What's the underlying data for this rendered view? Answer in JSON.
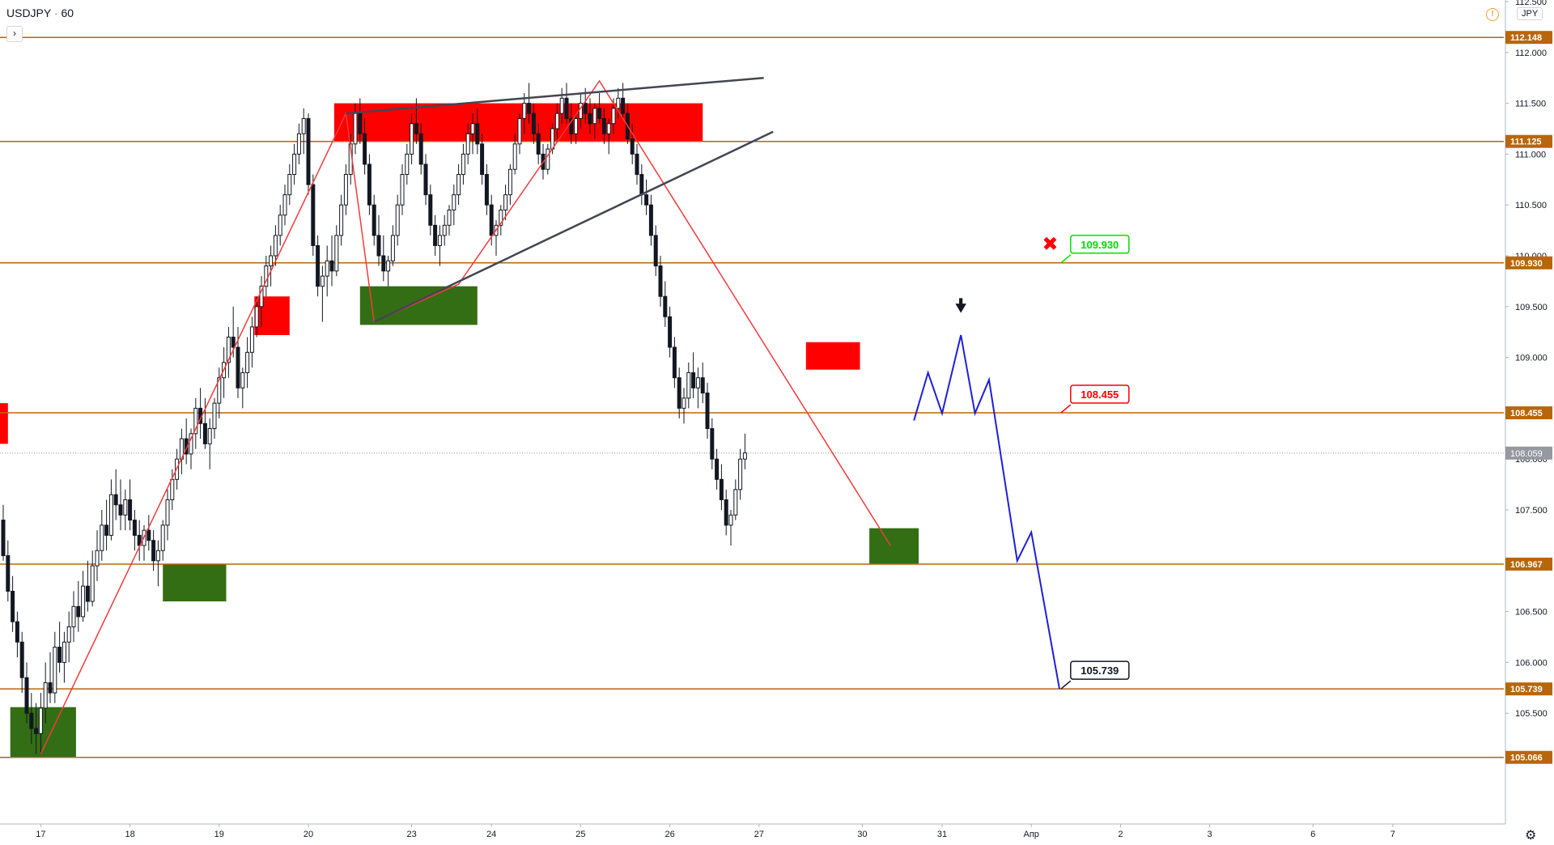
{
  "header": {
    "symbol": "USDJPY",
    "separator": "·",
    "interval": "60",
    "expand_glyph": "›",
    "alert_glyph": "!",
    "currency": "JPY",
    "settings_glyph": "⚙"
  },
  "chart_data": {
    "type": "candlestick",
    "title": "USDJPY · 60",
    "ylim": [
      104.8,
      112.55
    ],
    "y_ticks": [
      {
        "value": 105.5,
        "label": "105.500"
      },
      {
        "value": 106.0,
        "label": "106.000"
      },
      {
        "value": 106.5,
        "label": "106.500"
      },
      {
        "value": 107.5,
        "label": "107.500"
      },
      {
        "value": 108.0,
        "label": "108.000"
      },
      {
        "value": 109.0,
        "label": "109.000"
      },
      {
        "value": 109.5,
        "label": "109.500"
      },
      {
        "value": 110.0,
        "label": "110.000"
      },
      {
        "value": 110.5,
        "label": "110.500"
      },
      {
        "value": 111.0,
        "label": "111.000"
      },
      {
        "value": 111.5,
        "label": "111.500"
      },
      {
        "value": 112.0,
        "label": "112.000"
      },
      {
        "value": 112.5,
        "label": "112.500"
      }
    ],
    "x_ticks": [
      {
        "idx": 8,
        "label": "17"
      },
      {
        "idx": 27,
        "label": "18"
      },
      {
        "idx": 46,
        "label": "19"
      },
      {
        "idx": 65,
        "label": "20"
      },
      {
        "idx": 87,
        "label": "23"
      },
      {
        "idx": 104,
        "label": "24"
      },
      {
        "idx": 123,
        "label": "25"
      },
      {
        "idx": 142,
        "label": "26"
      },
      {
        "idx": 161,
        "label": "27"
      },
      {
        "idx": 183,
        "label": "30"
      },
      {
        "idx": 200,
        "label": "31"
      },
      {
        "idx": 219,
        "label": "Апр"
      },
      {
        "idx": 238,
        "label": "2"
      },
      {
        "idx": 257,
        "label": "3"
      },
      {
        "idx": 279,
        "label": "6"
      },
      {
        "idx": 296,
        "label": "7"
      }
    ],
    "levels": [
      {
        "value": 112.148,
        "label": "112.148",
        "color": "#b8660b"
      },
      {
        "value": 111.125,
        "label": "111.125",
        "color": "#b8660b"
      },
      {
        "value": 109.93,
        "label": "109.930",
        "color": "#b8660b"
      },
      {
        "value": 108.455,
        "label": "108.455",
        "color": "#b8660b"
      },
      {
        "value": 106.967,
        "label": "106.967",
        "color": "#b8660b"
      },
      {
        "value": 105.739,
        "label": "105.739",
        "color": "#b8660b"
      },
      {
        "value": 105.066,
        "label": "105.066",
        "color": "#b8660b"
      }
    ],
    "last_price": {
      "value": 108.059,
      "label": "108.059",
      "color": "#9598a1"
    },
    "zones": [
      {
        "type": "supply",
        "color": "#ff0000",
        "x0": 70.5,
        "x1": 149,
        "y0": 111.12,
        "y1": 111.5
      },
      {
        "type": "supply",
        "color": "#ff0000",
        "x0": 53.5,
        "x1": 61,
        "y0": 109.22,
        "y1": 109.6
      },
      {
        "type": "supply",
        "color": "#ff0000",
        "x0": 171,
        "x1": 182.5,
        "y0": 108.88,
        "y1": 109.15
      },
      {
        "type": "supply",
        "color": "#ff0000",
        "x0": -1,
        "x1": 1,
        "y0": 108.15,
        "y1": 108.55
      },
      {
        "type": "demand",
        "color": "#336e14",
        "x0": 76,
        "x1": 101,
        "y0": 109.32,
        "y1": 109.7
      },
      {
        "type": "demand",
        "color": "#336e14",
        "x0": 34,
        "x1": 47.5,
        "y0": 106.6,
        "y1": 106.97
      },
      {
        "type": "demand",
        "color": "#336e14",
        "x0": 184.5,
        "x1": 195,
        "y0": 106.97,
        "y1": 107.32
      },
      {
        "type": "demand",
        "color": "#336e14",
        "x0": 1.5,
        "x1": 15.5,
        "y0": 105.066,
        "y1": 105.56
      }
    ],
    "zigzag": {
      "color": "#f03c3c",
      "points": [
        [
          8,
          105.1
        ],
        [
          73,
          111.4
        ],
        [
          79,
          109.35
        ],
        [
          97,
          109.72
        ],
        [
          127,
          111.72
        ],
        [
          189,
          107.15
        ]
      ]
    },
    "trendlines": [
      {
        "color": "#434651",
        "points": [
          [
            73,
            111.4
          ],
          [
            162,
            111.75
          ]
        ]
      },
      {
        "color": "#434651",
        "points": [
          [
            79,
            109.35
          ],
          [
            164,
            111.22
          ]
        ]
      }
    ],
    "projection": {
      "color": "#1f1fd6",
      "points": [
        [
          194,
          108.38
        ],
        [
          197,
          108.85
        ],
        [
          200,
          108.45
        ],
        [
          204,
          109.22
        ],
        [
          207,
          108.45
        ],
        [
          210,
          108.78
        ],
        [
          216,
          107.0
        ],
        [
          219,
          107.28
        ],
        [
          225,
          105.739
        ]
      ]
    },
    "target_labels": [
      {
        "text": "109.930",
        "value": 109.93,
        "idx": 226,
        "color": "#00e000"
      },
      {
        "text": "108.455",
        "value": 108.455,
        "idx": 226,
        "color": "#ff0000"
      },
      {
        "text": "105.739",
        "value": 105.739,
        "idx": 226,
        "color": "#131722"
      }
    ],
    "markers": [
      {
        "symbol": "✖",
        "idx": 223,
        "value": 110.05,
        "color": "#ff0000"
      },
      {
        "symbol": "🠟",
        "idx": 204,
        "value": 109.45,
        "color": "#131722"
      }
    ],
    "ohlc": [
      [
        107.4,
        107.55,
        107.0,
        107.05
      ],
      [
        107.05,
        107.2,
        106.6,
        106.7
      ],
      [
        106.7,
        106.85,
        106.3,
        106.4
      ],
      [
        106.4,
        106.5,
        106.05,
        106.2
      ],
      [
        106.2,
        106.3,
        105.7,
        105.85
      ],
      [
        105.85,
        106.0,
        105.4,
        105.5
      ],
      [
        105.5,
        105.7,
        105.2,
        105.35
      ],
      [
        105.35,
        105.6,
        105.1,
        105.3
      ],
      [
        105.3,
        105.7,
        105.1,
        105.55
      ],
      [
        105.55,
        106.0,
        105.4,
        105.8
      ],
      [
        105.8,
        106.1,
        105.6,
        105.7
      ],
      [
        105.7,
        106.3,
        105.6,
        106.15
      ],
      [
        106.15,
        106.4,
        105.9,
        106.0
      ],
      [
        106.0,
        106.3,
        105.8,
        106.2
      ],
      [
        106.2,
        106.5,
        106.0,
        106.35
      ],
      [
        106.35,
        106.7,
        106.2,
        106.55
      ],
      [
        106.55,
        106.8,
        106.3,
        106.45
      ],
      [
        106.45,
        106.9,
        106.4,
        106.75
      ],
      [
        106.75,
        107.0,
        106.5,
        106.6
      ],
      [
        106.6,
        107.1,
        106.55,
        106.95
      ],
      [
        106.95,
        107.3,
        106.8,
        107.1
      ],
      [
        107.1,
        107.5,
        107.0,
        107.35
      ],
      [
        107.35,
        107.6,
        107.1,
        107.25
      ],
      [
        107.25,
        107.8,
        107.2,
        107.65
      ],
      [
        107.65,
        107.9,
        107.4,
        107.55
      ],
      [
        107.55,
        107.8,
        107.3,
        107.45
      ],
      [
        107.45,
        107.7,
        107.3,
        107.6
      ],
      [
        107.6,
        107.8,
        107.3,
        107.4
      ],
      [
        107.4,
        107.5,
        107.1,
        107.25
      ],
      [
        107.25,
        107.4,
        107.0,
        107.15
      ],
      [
        107.15,
        107.35,
        107.0,
        107.3
      ],
      [
        107.3,
        107.45,
        107.1,
        107.2
      ],
      [
        107.2,
        107.3,
        106.9,
        107.0
      ],
      [
        107.0,
        107.2,
        106.75,
        107.1
      ],
      [
        107.1,
        107.4,
        107.0,
        107.35
      ],
      [
        107.35,
        107.7,
        107.2,
        107.6
      ],
      [
        107.6,
        107.9,
        107.5,
        107.8
      ],
      [
        107.8,
        108.1,
        107.7,
        108.0
      ],
      [
        108.0,
        108.3,
        107.85,
        108.2
      ],
      [
        108.2,
        108.4,
        107.95,
        108.05
      ],
      [
        108.05,
        108.3,
        107.9,
        108.25
      ],
      [
        108.25,
        108.6,
        108.1,
        108.5
      ],
      [
        108.5,
        108.7,
        108.2,
        108.35
      ],
      [
        108.35,
        108.6,
        108.1,
        108.15
      ],
      [
        108.15,
        108.4,
        107.9,
        108.3
      ],
      [
        108.3,
        108.6,
        108.2,
        108.55
      ],
      [
        108.55,
        108.9,
        108.4,
        108.8
      ],
      [
        108.8,
        109.1,
        108.6,
        108.95
      ],
      [
        108.95,
        109.3,
        108.8,
        109.2
      ],
      [
        109.2,
        109.5,
        109.0,
        109.1
      ],
      [
        109.1,
        109.3,
        108.6,
        108.7
      ],
      [
        108.7,
        108.9,
        108.5,
        108.85
      ],
      [
        108.85,
        109.2,
        108.7,
        109.05
      ],
      [
        109.05,
        109.4,
        108.9,
        109.3
      ],
      [
        109.3,
        109.6,
        109.2,
        109.5
      ],
      [
        109.5,
        109.8,
        109.3,
        109.7
      ],
      [
        109.7,
        110.0,
        109.6,
        109.9
      ],
      [
        109.9,
        110.1,
        109.7,
        110.0
      ],
      [
        110.0,
        110.3,
        109.9,
        110.2
      ],
      [
        110.2,
        110.5,
        110.1,
        110.4
      ],
      [
        110.4,
        110.7,
        110.3,
        110.6
      ],
      [
        110.6,
        110.9,
        110.5,
        110.8
      ],
      [
        110.8,
        111.1,
        110.7,
        111.0
      ],
      [
        111.0,
        111.3,
        110.9,
        111.2
      ],
      [
        111.2,
        111.45,
        111.0,
        111.35
      ],
      [
        111.35,
        111.4,
        110.6,
        110.7
      ],
      [
        110.7,
        110.8,
        110.0,
        110.1
      ],
      [
        110.1,
        110.2,
        109.6,
        109.7
      ],
      [
        109.7,
        109.9,
        109.35,
        109.8
      ],
      [
        109.8,
        110.1,
        109.6,
        109.95
      ],
      [
        109.95,
        110.2,
        109.7,
        109.85
      ],
      [
        109.85,
        110.3,
        109.8,
        110.2
      ],
      [
        110.2,
        110.6,
        110.1,
        110.5
      ],
      [
        110.5,
        110.9,
        110.4,
        110.8
      ],
      [
        110.8,
        111.2,
        110.7,
        111.1
      ],
      [
        111.1,
        111.5,
        111.0,
        111.4
      ],
      [
        111.4,
        111.55,
        111.1,
        111.2
      ],
      [
        111.2,
        111.35,
        110.8,
        110.9
      ],
      [
        110.9,
        111.0,
        110.4,
        110.5
      ],
      [
        110.5,
        110.6,
        110.1,
        110.2
      ],
      [
        110.2,
        110.4,
        109.9,
        110.0
      ],
      [
        110.0,
        110.2,
        109.75,
        109.85
      ],
      [
        109.85,
        110.0,
        109.7,
        109.95
      ],
      [
        109.95,
        110.3,
        109.9,
        110.2
      ],
      [
        110.2,
        110.6,
        110.1,
        110.5
      ],
      [
        110.5,
        110.9,
        110.4,
        110.8
      ],
      [
        110.8,
        111.1,
        110.7,
        111.0
      ],
      [
        111.0,
        111.4,
        110.9,
        111.3
      ],
      [
        111.3,
        111.55,
        111.1,
        111.2
      ],
      [
        111.2,
        111.3,
        110.8,
        110.9
      ],
      [
        110.9,
        111.0,
        110.5,
        110.6
      ],
      [
        110.6,
        110.7,
        110.2,
        110.3
      ],
      [
        110.3,
        110.4,
        110.0,
        110.1
      ],
      [
        110.1,
        110.3,
        109.9,
        110.2
      ],
      [
        110.2,
        110.4,
        110.1,
        110.3
      ],
      [
        110.3,
        110.5,
        110.2,
        110.45
      ],
      [
        110.45,
        110.7,
        110.3,
        110.6
      ],
      [
        110.6,
        110.9,
        110.5,
        110.8
      ],
      [
        110.8,
        111.1,
        110.7,
        111.0
      ],
      [
        111.0,
        111.3,
        110.9,
        111.2
      ],
      [
        111.2,
        111.4,
        111.0,
        111.3
      ],
      [
        111.3,
        111.45,
        111.0,
        111.1
      ],
      [
        111.1,
        111.2,
        110.7,
        110.8
      ],
      [
        110.8,
        110.9,
        110.4,
        110.5
      ],
      [
        110.5,
        110.6,
        110.1,
        110.2
      ],
      [
        110.2,
        110.35,
        110.0,
        110.3
      ],
      [
        110.3,
        110.5,
        110.2,
        110.45
      ],
      [
        110.45,
        110.7,
        110.35,
        110.6
      ],
      [
        110.6,
        110.9,
        110.5,
        110.85
      ],
      [
        110.85,
        111.2,
        110.8,
        111.1
      ],
      [
        111.1,
        111.4,
        111.0,
        111.35
      ],
      [
        111.35,
        111.6,
        111.2,
        111.5
      ],
      [
        111.5,
        111.7,
        111.3,
        111.4
      ],
      [
        111.4,
        111.5,
        111.1,
        111.2
      ],
      [
        111.2,
        111.3,
        110.9,
        111.0
      ],
      [
        111.0,
        111.1,
        110.75,
        110.85
      ],
      [
        110.85,
        111.1,
        110.8,
        111.05
      ],
      [
        111.05,
        111.3,
        111.0,
        111.25
      ],
      [
        111.25,
        111.5,
        111.15,
        111.4
      ],
      [
        111.4,
        111.65,
        111.3,
        111.55
      ],
      [
        111.55,
        111.7,
        111.3,
        111.35
      ],
      [
        111.35,
        111.5,
        111.1,
        111.2
      ],
      [
        111.2,
        111.4,
        111.1,
        111.35
      ],
      [
        111.35,
        111.6,
        111.25,
        111.5
      ],
      [
        111.5,
        111.65,
        111.3,
        111.4
      ],
      [
        111.4,
        111.55,
        111.2,
        111.3
      ],
      [
        111.3,
        111.5,
        111.15,
        111.45
      ],
      [
        111.45,
        111.6,
        111.3,
        111.35
      ],
      [
        111.35,
        111.45,
        111.1,
        111.2
      ],
      [
        111.2,
        111.35,
        111.0,
        111.3
      ],
      [
        111.3,
        111.55,
        111.2,
        111.45
      ],
      [
        111.45,
        111.65,
        111.35,
        111.55
      ],
      [
        111.55,
        111.7,
        111.35,
        111.4
      ],
      [
        111.4,
        111.5,
        111.1,
        111.15
      ],
      [
        111.15,
        111.3,
        110.9,
        111.0
      ],
      [
        111.0,
        111.1,
        110.7,
        110.8
      ],
      [
        110.8,
        110.9,
        110.5,
        110.6
      ],
      [
        110.6,
        110.75,
        110.4,
        110.5
      ],
      [
        110.5,
        110.6,
        110.1,
        110.2
      ],
      [
        110.2,
        110.3,
        109.8,
        109.9
      ],
      [
        109.9,
        110.0,
        109.5,
        109.6
      ],
      [
        109.6,
        109.75,
        109.3,
        109.4
      ],
      [
        109.4,
        109.5,
        109.0,
        109.1
      ],
      [
        109.1,
        109.2,
        108.7,
        108.8
      ],
      [
        108.8,
        108.9,
        108.4,
        108.5
      ],
      [
        108.5,
        108.7,
        108.35,
        108.6
      ],
      [
        108.6,
        108.95,
        108.5,
        108.85
      ],
      [
        108.85,
        109.05,
        108.6,
        108.7
      ],
      [
        108.7,
        108.9,
        108.5,
        108.8
      ],
      [
        108.8,
        108.95,
        108.55,
        108.65
      ],
      [
        108.65,
        108.75,
        108.2,
        108.3
      ],
      [
        108.3,
        108.4,
        107.9,
        108.0
      ],
      [
        108.0,
        108.1,
        107.7,
        107.8
      ],
      [
        107.8,
        107.95,
        107.5,
        107.6
      ],
      [
        107.6,
        107.7,
        107.25,
        107.35
      ],
      [
        107.35,
        107.5,
        107.15,
        107.45
      ],
      [
        107.45,
        107.8,
        107.4,
        107.7
      ],
      [
        107.7,
        108.1,
        107.6,
        108.0
      ],
      [
        108.0,
        108.25,
        107.9,
        108.06
      ]
    ]
  }
}
